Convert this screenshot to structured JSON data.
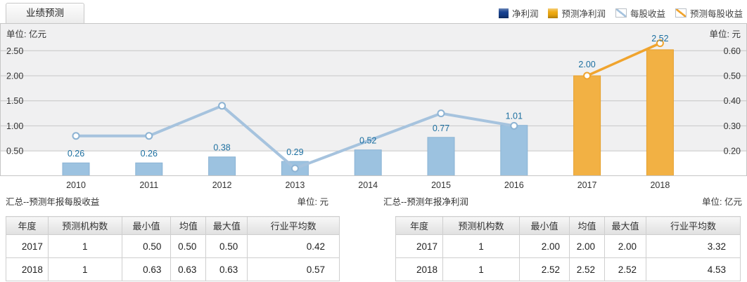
{
  "tab": {
    "label": "业绩预测"
  },
  "legend": {
    "items": [
      {
        "label": "净利润",
        "swatch": "navy-square"
      },
      {
        "label": "预测净利润",
        "swatch": "orange-square"
      },
      {
        "label": "每股收益",
        "swatch": "blue-diagonal-line"
      },
      {
        "label": "预测每股收益",
        "swatch": "gold-diagonal-line"
      }
    ]
  },
  "colors": {
    "legend_navy": "#15408f",
    "legend_orange": "#efa90e",
    "bar_blue": "#9cc2e0",
    "bar_blue_border": "#8ab3d4",
    "bar_orange": "#f2b144",
    "bar_orange_border": "#e5a02f",
    "line_blue": "#a6c3de",
    "line_blue_marker": "#8db3d3",
    "line_gold": "#f0a42e",
    "label_blue": "#1c6fa0",
    "grid": "#c6c6c6",
    "axis_baseline": "#a9a9a9",
    "axis_text": "#333333",
    "plot_band_gray": "#f0f0f1"
  },
  "chart_data": {
    "type": "bar",
    "title": "业绩预测",
    "categories": [
      "2010",
      "2011",
      "2012",
      "2013",
      "2014",
      "2015",
      "2016",
      "2017",
      "2018"
    ],
    "series": [
      {
        "name": "净利润",
        "kind": "bar",
        "axis": "left",
        "color_key": "bar_blue",
        "values": [
          0.26,
          0.26,
          0.38,
          0.29,
          0.52,
          0.77,
          1.01,
          null,
          null
        ],
        "labels_shown": true
      },
      {
        "name": "预测净利润",
        "kind": "bar",
        "axis": "left",
        "color_key": "bar_orange",
        "values": [
          null,
          null,
          null,
          null,
          null,
          null,
          null,
          2.0,
          2.52
        ],
        "labels_shown": true
      },
      {
        "name": "每股收益",
        "kind": "line",
        "axis": "right",
        "color_key": "line_blue",
        "values": [
          0.26,
          0.26,
          0.38,
          0.13,
          null,
          0.35,
          0.3,
          null,
          null
        ],
        "values_estimated": true
      },
      {
        "name": "预测每股收益",
        "kind": "line",
        "axis": "right",
        "color_key": "line_gold",
        "values": [
          null,
          null,
          null,
          null,
          null,
          null,
          null,
          0.5,
          0.63
        ]
      }
    ],
    "left_axis": {
      "unit": "单位: 亿元",
      "ticks": [
        2.5,
        2.0,
        1.5,
        1.0,
        0.5
      ],
      "min": 0,
      "max": 3.05
    },
    "right_axis": {
      "unit": "单位: 元",
      "ticks": [
        0.6,
        0.5,
        0.4,
        0.3,
        0.2
      ],
      "min": 0.1,
      "max": 0.71
    },
    "grid": true,
    "legend_position": "top-right"
  },
  "tables": {
    "left": {
      "title": "汇总--预测年报每股收益",
      "unit": "单位: 元",
      "headers": [
        "年度",
        "预测机构数",
        "最小值",
        "均值",
        "最大值",
        "行业平均数"
      ],
      "rows": [
        [
          "2017",
          "1",
          "0.50",
          "0.50",
          "0.50",
          "0.42"
        ],
        [
          "2018",
          "1",
          "0.63",
          "0.63",
          "0.63",
          "0.57"
        ]
      ]
    },
    "right": {
      "title": "汇总--预测年报净利润",
      "unit": "单位: 亿元",
      "headers": [
        "年度",
        "预测机构数",
        "最小值",
        "均值",
        "最大值",
        "行业平均数"
      ],
      "rows": [
        [
          "2017",
          "1",
          "2.00",
          "2.00",
          "2.00",
          "3.32"
        ],
        [
          "2018",
          "1",
          "2.52",
          "2.52",
          "2.52",
          "4.53"
        ]
      ]
    }
  }
}
